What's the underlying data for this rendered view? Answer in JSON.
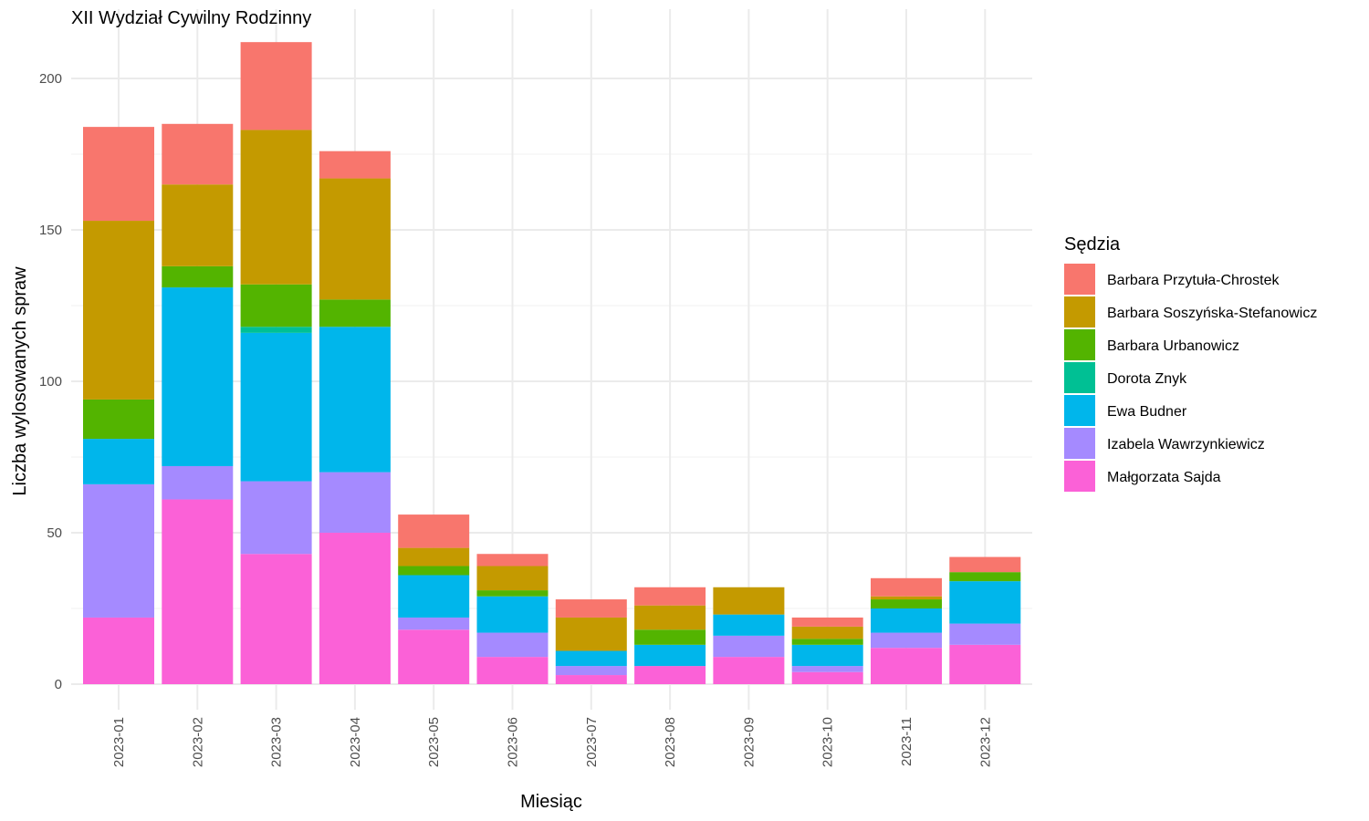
{
  "chart_data": {
    "type": "bar",
    "stacked": true,
    "title": "XII Wydział Cywilny Rodzinny",
    "xlabel": "Miesiąc",
    "ylabel": "Liczba wylosowanych spraw",
    "ylim": [
      0,
      215
    ],
    "yticks": [
      0,
      50,
      100,
      150,
      200
    ],
    "grid": true,
    "legend_title": "Sędzia",
    "legend_position": "right",
    "categories": [
      "2023-01",
      "2023-02",
      "2023-03",
      "2023-04",
      "2023-05",
      "2023-06",
      "2023-07",
      "2023-08",
      "2023-09",
      "2023-10",
      "2023-11",
      "2023-12"
    ],
    "series": [
      {
        "name": "Barbara Przytuła-Chrostek",
        "color": "#F8766D",
        "values": [
          31,
          20,
          29,
          9,
          11,
          4,
          6,
          6,
          0,
          3,
          6,
          5
        ]
      },
      {
        "name": "Barbara Soszyńska-Stefanowicz",
        "color": "#C49A00",
        "values": [
          59,
          27,
          51,
          40,
          6,
          8,
          11,
          8,
          9,
          4,
          1,
          0
        ]
      },
      {
        "name": "Barbara Urbanowicz",
        "color": "#53B400",
        "values": [
          13,
          7,
          14,
          9,
          3,
          2,
          0,
          5,
          0,
          2,
          3,
          3
        ]
      },
      {
        "name": "Dorota Znyk",
        "color": "#00C094",
        "values": [
          0,
          0,
          2,
          0,
          0,
          0,
          0,
          0,
          0,
          0,
          0,
          0
        ]
      },
      {
        "name": "Ewa Budner",
        "color": "#00B6EB",
        "values": [
          15,
          59,
          49,
          48,
          14,
          12,
          5,
          7,
          7,
          7,
          8,
          14
        ]
      },
      {
        "name": "Izabela Wawrzynkiewicz",
        "color": "#A58AFF",
        "values": [
          44,
          11,
          24,
          20,
          4,
          8,
          3,
          0,
          7,
          2,
          5,
          7
        ]
      },
      {
        "name": "Małgorzata Sajda",
        "color": "#FB61D7",
        "values": [
          22,
          61,
          43,
          50,
          18,
          9,
          3,
          6,
          9,
          4,
          12,
          13
        ]
      }
    ]
  }
}
